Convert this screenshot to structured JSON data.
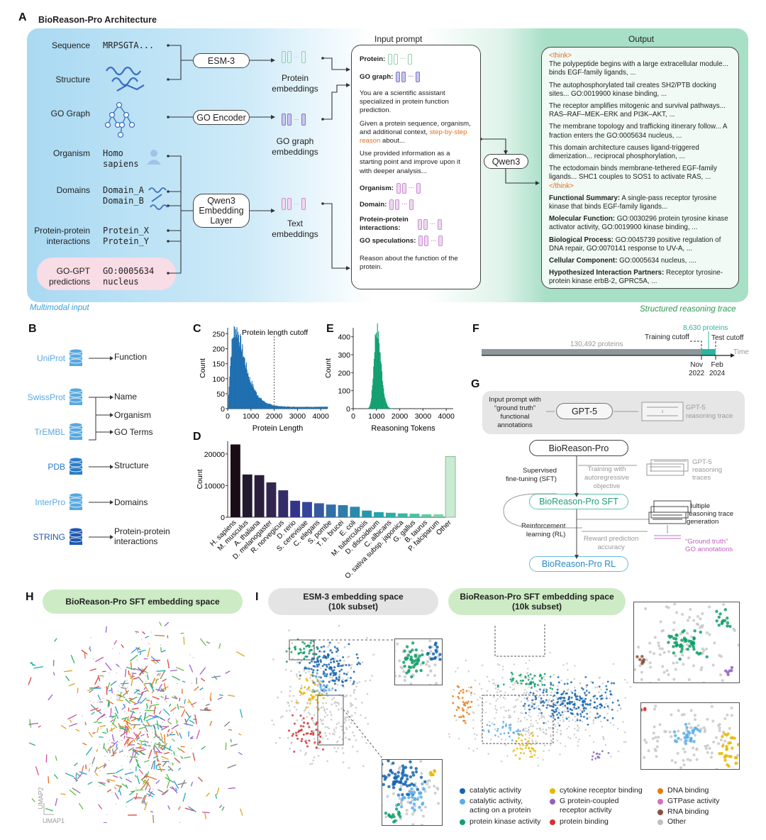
{
  "panel_a": {
    "letter": "A",
    "title": "BioReason-Pro Architecture",
    "inputs": [
      {
        "label": "Sequence",
        "value": "MRPSGTA..."
      },
      {
        "label": "Structure",
        "value": ""
      },
      {
        "label": "GO Graph",
        "value": ""
      },
      {
        "label": "Organism",
        "value": "Homo\nsapiens"
      },
      {
        "label": "Domains",
        "value": "Domain_A\nDomain_B"
      },
      {
        "label": "Protein-protein\ninteractions",
        "value": "Protein_X\nProtein_Y"
      },
      {
        "label": "GO-GPT\npredictions",
        "value": "GO:0005634\nnucleus"
      }
    ],
    "encoders": [
      "ESM-3",
      "GO Encoder",
      "Qwen3\nEmbedding\nLayer"
    ],
    "embeddings": [
      "Protein\nembeddings",
      "GO graph\nembeddings",
      "Text\nembeddings"
    ],
    "input_prompt": {
      "title": "Input prompt",
      "protein": "Protein:",
      "go_graph": "GO graph:",
      "p1": "You are a scientific assistant specialized in protein function prediction.",
      "p2a": "Given a protein sequence, organism, and additional context, ",
      "p2b": "step-by-step reason",
      "p2c": " about...",
      "p3": "Use provided information as a starting point and improve upon it with deeper analysis...",
      "organism": "Organism:",
      "domain": "Domain:",
      "ppi": "Protein-protein interactions:",
      "go_spec": "GO speculations:",
      "p4": "Reason about the function of the protein."
    },
    "llm": "Qwen3",
    "output": {
      "title": "Output",
      "think_open": "<think>",
      "think_close": "</think>",
      "thoughts": [
        "The polypeptide begins with a large extracellular module... binds EGF-family ligands, ...",
        "The autophosphorylated tail creates SH2/PTB docking sites... GO:0019900 kinase binding, ...",
        "The receptor amplifies mitogenic and survival pathways... RAS–RAF–MEK–ERK and PI3K–AKT, ...",
        "The membrane topology and trafficking itinerary follow... A fraction enters the GO:0005634 nucleus, ...",
        "This domain architecture causes ligand-triggered dimerization... reciprocal phosphorylation, ...",
        "The ectodomain binds membrane-tethered EGF-family ligands... SHC1 couples to SOS1 to activate RAS, ..."
      ],
      "sections": [
        {
          "k": "Functional Summary:",
          "v": " A single-pass receptor tyrosine kinase that binds EGF-family ligands..."
        },
        {
          "k": "Molecular Function:",
          "v": " GO:0030296 protein tyrosine kinase activator activity, GO:0019900 kinase binding, ..."
        },
        {
          "k": "Biological Process:",
          "v": " GO:0045739 positive regulation of DNA repair, GO:0070141 response to UV-A, ..."
        },
        {
          "k": "Cellular Component:",
          "v": " GO:0005634 nucleus, ...."
        },
        {
          "k": "Hypothesized Interaction Partners:",
          "v": " Receptor tyrosine-protein kinase erbB-2, GPRC5A, ..."
        }
      ]
    },
    "caption_left": "Multimodal input",
    "caption_right": "Structured reasoning trace"
  },
  "panel_b": {
    "letter": "B",
    "sources": [
      {
        "name": "UniProt",
        "targets": [
          "Function"
        ]
      },
      {
        "name": "SwissProt",
        "targets": [
          "Name",
          "Organism",
          "GO Terms"
        ]
      },
      {
        "name": "TrEMBL",
        "targets": []
      },
      {
        "name": "PDB",
        "targets": [
          "Structure"
        ]
      },
      {
        "name": "InterPro",
        "targets": [
          "Domains"
        ]
      },
      {
        "name": "STRING",
        "targets": [
          "Protein-protein\ninteractions"
        ]
      }
    ]
  },
  "chart_data": [
    {
      "id": "C",
      "type": "bar",
      "title": "",
      "annotation": "Protein length cutoff",
      "cutoff": 2000,
      "xlabel": "Protein Length",
      "ylabel": "Count",
      "xlim": [
        0,
        4300
      ],
      "ylim": [
        0,
        270
      ],
      "xticks": [
        0,
        1000,
        2000,
        3000,
        4000
      ],
      "yticks": [
        0,
        50,
        100,
        150,
        200,
        250
      ],
      "shape": "right-skewed histogram, peak ~260 at ~350",
      "color": "#1f6fb0"
    },
    {
      "id": "E",
      "type": "bar",
      "title": "",
      "xlabel": "Reasoning Tokens",
      "ylabel": "Count",
      "xlim": [
        0,
        4300
      ],
      "ylim": [
        0,
        450
      ],
      "xticks": [
        0,
        1000,
        2000,
        3000,
        4000
      ],
      "yticks": [
        0,
        100,
        200,
        300,
        400
      ],
      "shape": "histogram, peak ~440 at ~1000",
      "color": "#13a070"
    },
    {
      "id": "D",
      "type": "bar",
      "ylabel": "Count",
      "ylim": [
        0,
        24000
      ],
      "yticks": [
        0,
        10000,
        20000
      ],
      "categories": [
        "H. sapiens",
        "M. musculus",
        "A. thaliana",
        "D. melanogaster",
        "R. norvegicus",
        "D. rerio",
        "S. cerevisiae",
        "C. elegans",
        "S. pombe",
        "T. b. brucei",
        "E. coli",
        "M. tuberculosis",
        "D. discoideum",
        "C. albicans",
        "O. sativa subsp. japonica",
        "G. gallus",
        "B. taurus",
        "P. falciparum",
        "Other"
      ],
      "values": [
        23000,
        13500,
        13300,
        11000,
        8500,
        5200,
        4800,
        4400,
        4000,
        3800,
        3300,
        2100,
        1600,
        1400,
        1200,
        1100,
        900,
        900,
        19200
      ]
    }
  ],
  "panel_f": {
    "letter": "F",
    "train_count": "130,492 proteins",
    "test_count": "8,630 proteins",
    "training_cutoff": "Training cutoff",
    "test_cutoff": "Test cutoff",
    "axis": "Time",
    "d1": "Nov\n2022",
    "d2": "Feb\n2024",
    "colors": {
      "train": "#8c979b",
      "test": "#2bb5a0"
    }
  },
  "panel_g": {
    "letter": "G",
    "prompt": "Input prompt with\n“ground truth”\nfunctional\nannotations",
    "gpt": "GPT-5",
    "gpt_trace": "GPT-5\nreasoning trace",
    "base": "BioReason-Pro",
    "sft_label": "Supervised\nfine-tuning (SFT)",
    "train_with": "Training with\nautoregressive\nobjective",
    "gpt_traces": "GPT-5\nreasoning\ntraces",
    "sft": "BioReason-Pro SFT",
    "rl_label": "Reinforcement\nlearning (RL)",
    "multi": "Multiple\nreasoning trace\ngeneration",
    "reward": "Reward prediction\naccuracy",
    "gt": "“Ground truth”\nGO annotations",
    "rl": "BioReason-Pro RL"
  },
  "panel_h": {
    "letter": "H",
    "title": "BioReason-Pro SFT embedding space",
    "axis_y": "UMAP2",
    "axis_x": "UMAP1"
  },
  "panel_i": {
    "letter": "I",
    "title_left": "ESM-3 embedding space\n(10k subset)",
    "title_right": "BioReason-Pro SFT embedding space\n(10k subset)",
    "legend": [
      {
        "label": "catalytic activity",
        "color": "#1565b0"
      },
      {
        "label": "catalytic activity,\nacting on a protein",
        "color": "#5aaee8"
      },
      {
        "label": "protein kinase activity",
        "color": "#10a06a"
      },
      {
        "label": "cytokine receptor binding",
        "color": "#e8b800"
      },
      {
        "label": "G protein-coupled\nreceptor activity",
        "color": "#9060c0"
      },
      {
        "label": "protein binding",
        "color": "#d63030"
      },
      {
        "label": "DNA binding",
        "color": "#e87a10"
      },
      {
        "label": "GTPase activity",
        "color": "#d070c0"
      },
      {
        "label": "RNA binding",
        "color": "#8a5040"
      },
      {
        "label": "Other",
        "color": "#c0c0c0"
      }
    ]
  }
}
